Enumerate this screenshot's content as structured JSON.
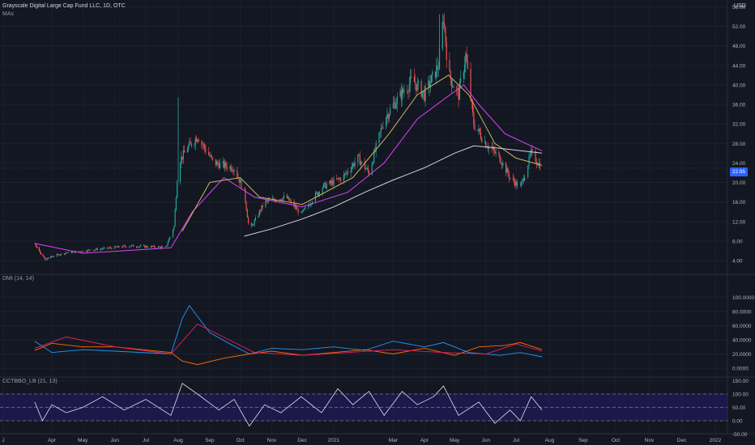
{
  "header": {
    "title": "Grayscale Digital Large Cap Fund LLC, 1D, OTC",
    "overlay": "MAs",
    "currency": "USD",
    "last_price": "22.95"
  },
  "colors": {
    "up": "#26a69a",
    "down": "#ef5350",
    "ma_short": "#e040fb",
    "ma_mid": "#c8b560",
    "ma_long": "#d1d4dc",
    "dmi_plus": "#2196f3",
    "dmi_minus": "#ff6d00",
    "adx": "#e91e63",
    "osc": "#e1e1f0",
    "band": "#311b92"
  },
  "chart_data": [
    {
      "type": "candlestick",
      "title": "Grayscale Digital Large Cap Fund LLC, 1D, OTC",
      "x_tick_labels": [
        "J",
        "Apr",
        "May",
        "Jun",
        "Jul",
        "Aug",
        "Sep",
        "Oct",
        "Nov",
        "Dec",
        "2021",
        "Mar",
        "Apr",
        "May",
        "Jun",
        "Jul",
        "Aug",
        "Sep",
        "Oct",
        "Nov",
        "Dec",
        "2022"
      ],
      "y_tick_labels": [
        "56.00",
        "52.00",
        "48.00",
        "44.00",
        "40.00",
        "36.00",
        "32.00",
        "28.00",
        "24.00",
        "20.00",
        "16.00",
        "12.00",
        "8.00",
        "4.00"
      ],
      "ylim": [
        2,
        58
      ],
      "last_value": 22.95,
      "close_path": [
        [
          "2020-03-01",
          7.5
        ],
        [
          "2020-03-20",
          4.2
        ],
        [
          "2020-04-15",
          5.6
        ],
        [
          "2020-05-15",
          6.3
        ],
        [
          "2020-06-15",
          7.0
        ],
        [
          "2020-07-20",
          6.7
        ],
        [
          "2020-07-28",
          11.0
        ],
        [
          "2020-08-01",
          24.0
        ],
        [
          "2020-08-10",
          27.0
        ],
        [
          "2020-08-20",
          29.5
        ],
        [
          "2020-09-05",
          24.0
        ],
        [
          "2020-09-25",
          23.0
        ],
        [
          "2020-10-05",
          18.0
        ],
        [
          "2020-10-10",
          10.0
        ],
        [
          "2020-10-25",
          16.0
        ],
        [
          "2020-11-15",
          17.0
        ],
        [
          "2020-11-30",
          13.5
        ],
        [
          "2020-12-20",
          19.0
        ],
        [
          "2021-01-10",
          21.0
        ],
        [
          "2021-01-25",
          25.0
        ],
        [
          "2021-02-05",
          22.0
        ],
        [
          "2021-02-20",
          33.0
        ],
        [
          "2021-03-05",
          37.0
        ],
        [
          "2021-03-20",
          41.0
        ],
        [
          "2021-04-01",
          38.0
        ],
        [
          "2021-04-15",
          44.0
        ],
        [
          "2021-04-20",
          54.0
        ],
        [
          "2021-04-25",
          42.0
        ],
        [
          "2021-05-05",
          38.0
        ],
        [
          "2021-05-12",
          46.0
        ],
        [
          "2021-05-20",
          32.0
        ],
        [
          "2021-06-01",
          28.0
        ],
        [
          "2021-06-15",
          25.0
        ],
        [
          "2021-06-25",
          21.0
        ],
        [
          "2021-07-05",
          19.0
        ],
        [
          "2021-07-15",
          26.0
        ],
        [
          "2021-07-25",
          22.95
        ]
      ],
      "moving_averages": [
        {
          "points": [
            [
              "2020-03-01",
              7.5
            ],
            [
              "2020-05-01",
              5.5
            ],
            [
              "2020-07-25",
              6.6
            ],
            [
              "2020-08-15",
              14.0
            ],
            [
              "2020-09-15",
              21.0
            ],
            [
              "2020-10-15",
              17.0
            ],
            [
              "2020-12-01",
              15.0
            ],
            [
              "2021-01-15",
              18.0
            ],
            [
              "2021-02-20",
              24.0
            ],
            [
              "2021-03-25",
              33.0
            ],
            [
              "2021-04-20",
              37.0
            ],
            [
              "2021-05-10",
              40.0
            ],
            [
              "2021-05-25",
              36.0
            ],
            [
              "2021-06-20",
              30.0
            ],
            [
              "2021-07-10",
              28.0
            ],
            [
              "2021-07-25",
              26.5
            ]
          ]
        },
        {
          "points": [
            [
              "2020-08-05",
              10.0
            ],
            [
              "2020-09-01",
              20.0
            ],
            [
              "2020-10-01",
              21.0
            ],
            [
              "2020-10-20",
              17.0
            ],
            [
              "2020-12-01",
              15.5
            ],
            [
              "2021-01-20",
              21.0
            ],
            [
              "2021-02-25",
              30.0
            ],
            [
              "2021-03-25",
              38.0
            ],
            [
              "2021-04-25",
              42.0
            ],
            [
              "2021-05-15",
              38.0
            ],
            [
              "2021-06-10",
              28.0
            ],
            [
              "2021-07-01",
              25.0
            ],
            [
              "2021-07-25",
              23.5
            ]
          ]
        },
        {
          "points": [
            [
              "2020-10-05",
              9.0
            ],
            [
              "2020-11-01",
              10.5
            ],
            [
              "2020-12-01",
              12.5
            ],
            [
              "2021-01-01",
              15.0
            ],
            [
              "2021-02-01",
              18.0
            ],
            [
              "2021-03-01",
              20.5
            ],
            [
              "2021-04-01",
              23.0
            ],
            [
              "2021-05-01",
              26.0
            ],
            [
              "2021-05-20",
              27.5
            ],
            [
              "2021-06-15",
              27.0
            ],
            [
              "2021-07-25",
              26.0
            ]
          ]
        }
      ]
    },
    {
      "type": "line",
      "title": "DMI (14, 14)",
      "y_tick_labels": [
        "100.0000",
        "80.0000",
        "60.0000",
        "40.0000",
        "20.0000",
        "0.0000"
      ],
      "ylim": [
        0,
        100
      ],
      "series": [
        {
          "points": [
            [
              "2020-03-01",
              38
            ],
            [
              "2020-04-01",
              22
            ],
            [
              "2020-05-01",
              26
            ],
            [
              "2020-06-01",
              24
            ],
            [
              "2020-07-25",
              20
            ],
            [
              "2020-08-05",
              70
            ],
            [
              "2020-08-12",
              88
            ],
            [
              "2020-09-01",
              50
            ],
            [
              "2020-09-20",
              35
            ],
            [
              "2020-10-10",
              20
            ],
            [
              "2020-11-01",
              28
            ],
            [
              "2020-12-01",
              26
            ],
            [
              "2021-01-01",
              30
            ],
            [
              "2021-02-01",
              25
            ],
            [
              "2021-03-01",
              38
            ],
            [
              "2021-04-01",
              30
            ],
            [
              "2021-04-20",
              36
            ],
            [
              "2021-05-15",
              22
            ],
            [
              "2021-06-15",
              18
            ],
            [
              "2021-07-05",
              22
            ],
            [
              "2021-07-25",
              16
            ]
          ]
        },
        {
          "points": [
            [
              "2020-03-01",
              25
            ],
            [
              "2020-04-01",
              35
            ],
            [
              "2020-05-01",
              30
            ],
            [
              "2020-06-01",
              30
            ],
            [
              "2020-07-25",
              22
            ],
            [
              "2020-08-05",
              10
            ],
            [
              "2020-08-20",
              5
            ],
            [
              "2020-09-15",
              14
            ],
            [
              "2020-10-10",
              20
            ],
            [
              "2020-11-01",
              24
            ],
            [
              "2020-12-01",
              18
            ],
            [
              "2021-01-01",
              22
            ],
            [
              "2021-02-01",
              26
            ],
            [
              "2021-03-01",
              20
            ],
            [
              "2021-04-01",
              28
            ],
            [
              "2021-05-01",
              18
            ],
            [
              "2021-05-25",
              30
            ],
            [
              "2021-06-20",
              32
            ],
            [
              "2021-07-05",
              36
            ],
            [
              "2021-07-25",
              26
            ]
          ]
        },
        {
          "points": [
            [
              "2020-03-01",
              28
            ],
            [
              "2020-04-15",
              44
            ],
            [
              "2020-06-01",
              30
            ],
            [
              "2020-07-25",
              20
            ],
            [
              "2020-08-20",
              62
            ],
            [
              "2020-09-20",
              40
            ],
            [
              "2020-10-15",
              22
            ],
            [
              "2020-12-01",
              18
            ],
            [
              "2021-01-15",
              22
            ],
            [
              "2021-03-01",
              26
            ],
            [
              "2021-04-20",
              22
            ],
            [
              "2021-06-01",
              20
            ],
            [
              "2021-07-01",
              34
            ],
            [
              "2021-07-25",
              24
            ]
          ]
        }
      ]
    },
    {
      "type": "line",
      "title": "CCTBBO_LB (21, 13)",
      "y_tick_labels": [
        "150.00",
        "100.00",
        "50.00",
        "0.00",
        "-50.00"
      ],
      "ylim": [
        -50,
        150
      ],
      "reference_lines": [
        100,
        50,
        0
      ],
      "series": [
        {
          "points": [
            [
              "2020-03-01",
              70
            ],
            [
              "2020-03-15",
              0
            ],
            [
              "2020-04-01",
              60
            ],
            [
              "2020-04-15",
              30
            ],
            [
              "2020-05-01",
              50
            ],
            [
              "2020-05-20",
              90
            ],
            [
              "2020-06-10",
              40
            ],
            [
              "2020-07-01",
              80
            ],
            [
              "2020-07-25",
              20
            ],
            [
              "2020-08-05",
              140
            ],
            [
              "2020-08-20",
              100
            ],
            [
              "2020-09-10",
              40
            ],
            [
              "2020-09-25",
              80
            ],
            [
              "2020-10-10",
              -20
            ],
            [
              "2020-10-25",
              60
            ],
            [
              "2020-11-10",
              30
            ],
            [
              "2020-11-30",
              90
            ],
            [
              "2020-12-20",
              30
            ],
            [
              "2021-01-05",
              120
            ],
            [
              "2021-01-20",
              60
            ],
            [
              "2021-02-05",
              110
            ],
            [
              "2021-02-20",
              20
            ],
            [
              "2021-03-10",
              110
            ],
            [
              "2021-03-25",
              60
            ],
            [
              "2021-04-10",
              90
            ],
            [
              "2021-04-20",
              130
            ],
            [
              "2021-05-05",
              20
            ],
            [
              "2021-05-25",
              70
            ],
            [
              "2021-06-10",
              -10
            ],
            [
              "2021-06-25",
              40
            ],
            [
              "2021-07-05",
              0
            ],
            [
              "2021-07-15",
              90
            ],
            [
              "2021-07-25",
              40
            ]
          ]
        }
      ]
    }
  ]
}
